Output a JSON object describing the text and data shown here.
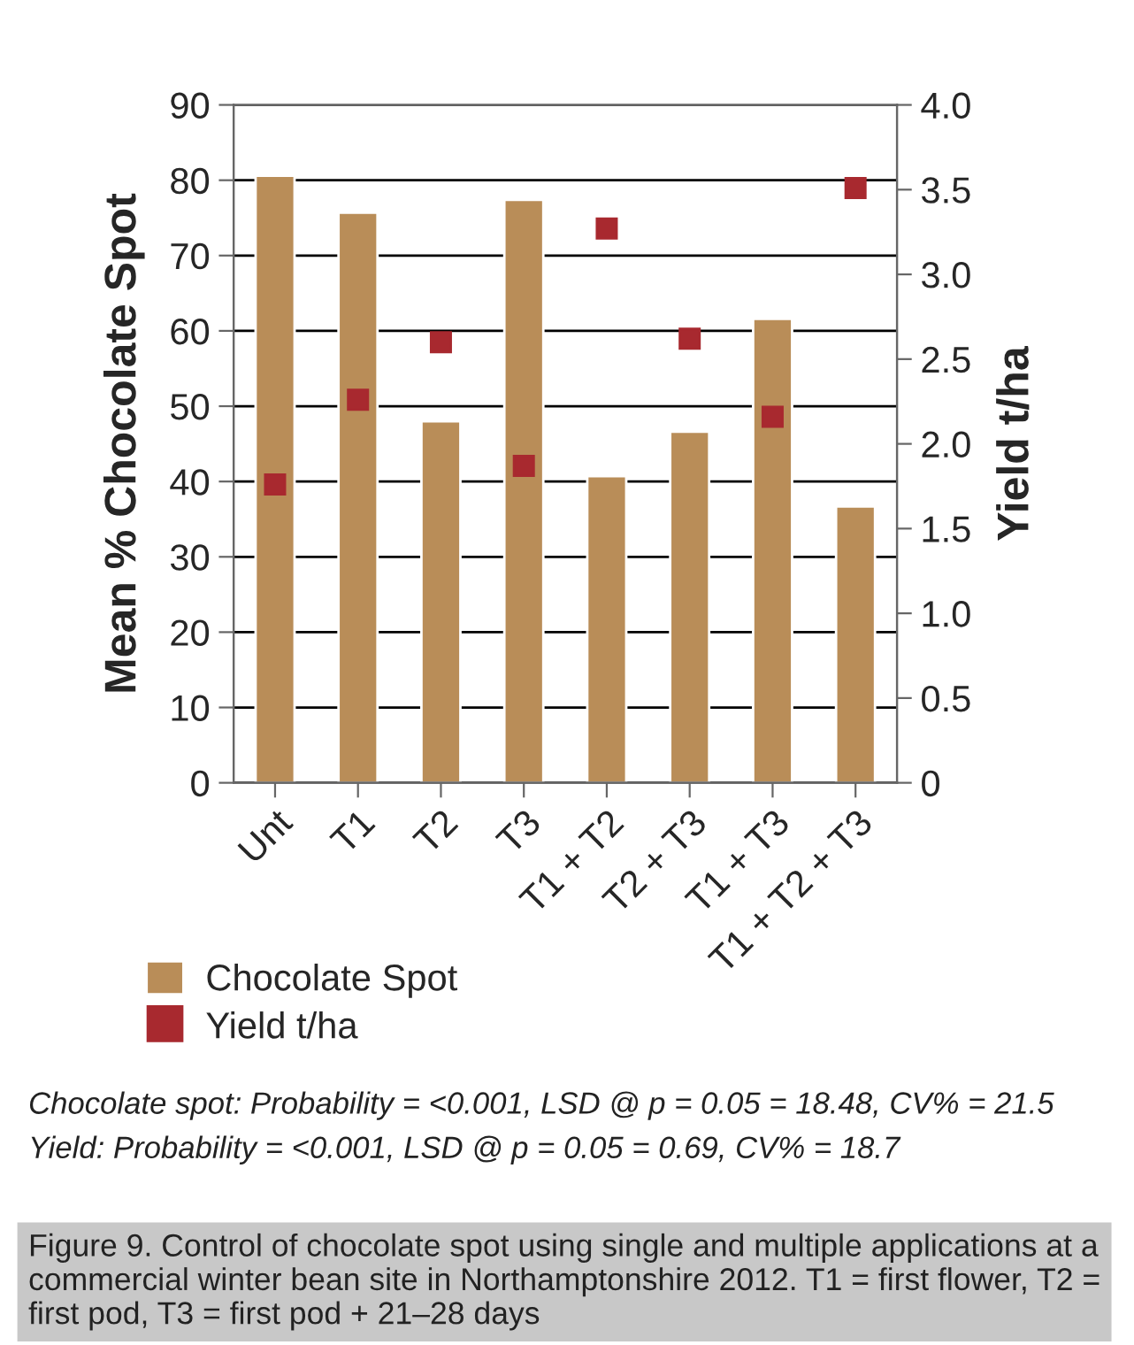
{
  "chart_data": {
    "type": "bar",
    "categories": [
      "Unt",
      "T1",
      "T2",
      "T3",
      "T1 + T2",
      "T2 + T3",
      "T1 + T3",
      "T1 + T2 + T3"
    ],
    "series": [
      {
        "name": "Chocolate Spot",
        "color": "#b98d58",
        "values": [
          80.6,
          75.7,
          48.0,
          77.4,
          40.7,
          46.6,
          61.6,
          36.7
        ]
      },
      {
        "name": "Yield t/ha",
        "type": "scatter",
        "axis": "y2",
        "marker": "square",
        "color": "#a8292f",
        "values": [
          1.76,
          2.26,
          2.6,
          1.87,
          3.27,
          2.62,
          2.16,
          3.51
        ]
      }
    ],
    "ylabel": "Mean % Chocolate Spot",
    "y2label": "Yield t/ha",
    "ylim": [
      0,
      90
    ],
    "yticks": [
      0,
      10,
      20,
      30,
      40,
      50,
      60,
      70,
      80,
      90
    ],
    "y2lim": [
      0,
      4.0
    ],
    "y2ticks": [
      {
        "value": 0,
        "label": "0"
      },
      {
        "value": 0.5,
        "label": "0.5"
      },
      {
        "value": 1.0,
        "label": "1.0"
      },
      {
        "value": 1.5,
        "label": "1.5"
      },
      {
        "value": 2.0,
        "label": "2.0"
      },
      {
        "value": 2.5,
        "label": "2.5"
      },
      {
        "value": 3.0,
        "label": "3.0"
      },
      {
        "value": 3.5,
        "label": "3.5"
      },
      {
        "value": 4.0,
        "label": "4.0"
      }
    ],
    "grid": "y",
    "legend": "bottom left",
    "annotations": [
      "Chocolate spot: Probability = <0.001, LSD @ p = 0.05 = 18.48, CV% = 21.5",
      "Yield: Probability = <0.001, LSD @ p = 0.05 = 0.69, CV% = 18.7",
      "Figure 9. Control of chocolate spot using single and multiple applications at a commercial winter bean site in Northamptonshire 2012. T1 = first flower, T2 = first pod, T3 = first pod + 21–28 days"
    ]
  }
}
